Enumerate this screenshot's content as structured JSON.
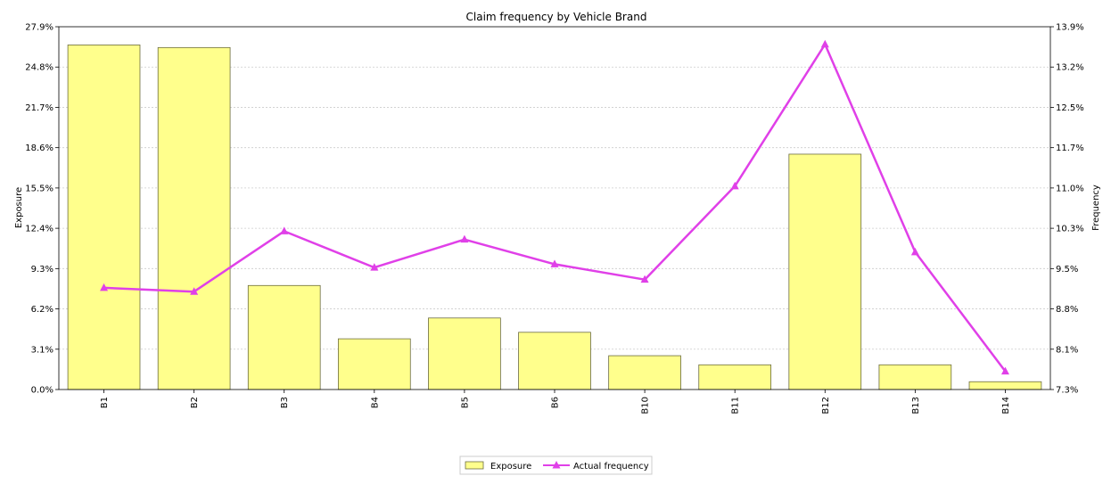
{
  "chart_data": {
    "type": "bar",
    "title": "Claim frequency by Vehicle Brand",
    "categories": [
      "B1",
      "B2",
      "B3",
      "B4",
      "B5",
      "B6",
      "B10",
      "B11",
      "B12",
      "B13",
      "B14"
    ],
    "series": [
      {
        "name": "Exposure",
        "type": "bar",
        "axis": "left",
        "values": [
          26.5,
          26.3,
          8.0,
          3.9,
          5.5,
          4.4,
          2.6,
          1.9,
          18.1,
          1.9,
          0.6
        ],
        "color": "#ffff8c",
        "edge_color": "#6b6b40"
      },
      {
        "name": "Actual frequency",
        "type": "line",
        "axis": "right",
        "values": [
          9.15,
          9.08,
          10.18,
          9.52,
          10.03,
          9.58,
          9.3,
          11.0,
          13.58,
          9.8,
          7.63
        ],
        "color": "#e040e8",
        "marker": "triangle"
      }
    ],
    "ylabel": "Exposure",
    "ylabel_right": "Frequency",
    "ylim": [
      0,
      27.9
    ],
    "ylim_right": [
      7.3,
      13.9
    ],
    "yticks": [
      "0.0%",
      "3.1%",
      "6.2%",
      "9.3%",
      "12.4%",
      "15.5%",
      "18.6%",
      "21.7%",
      "24.8%",
      "27.9%"
    ],
    "yticks_right": [
      "7.3%",
      "8.1%",
      "8.8%",
      "9.5%",
      "10.3%",
      "11.0%",
      "11.7%",
      "12.5%",
      "13.2%",
      "13.9%"
    ],
    "grid": true,
    "legend_position": "bottom-center"
  }
}
